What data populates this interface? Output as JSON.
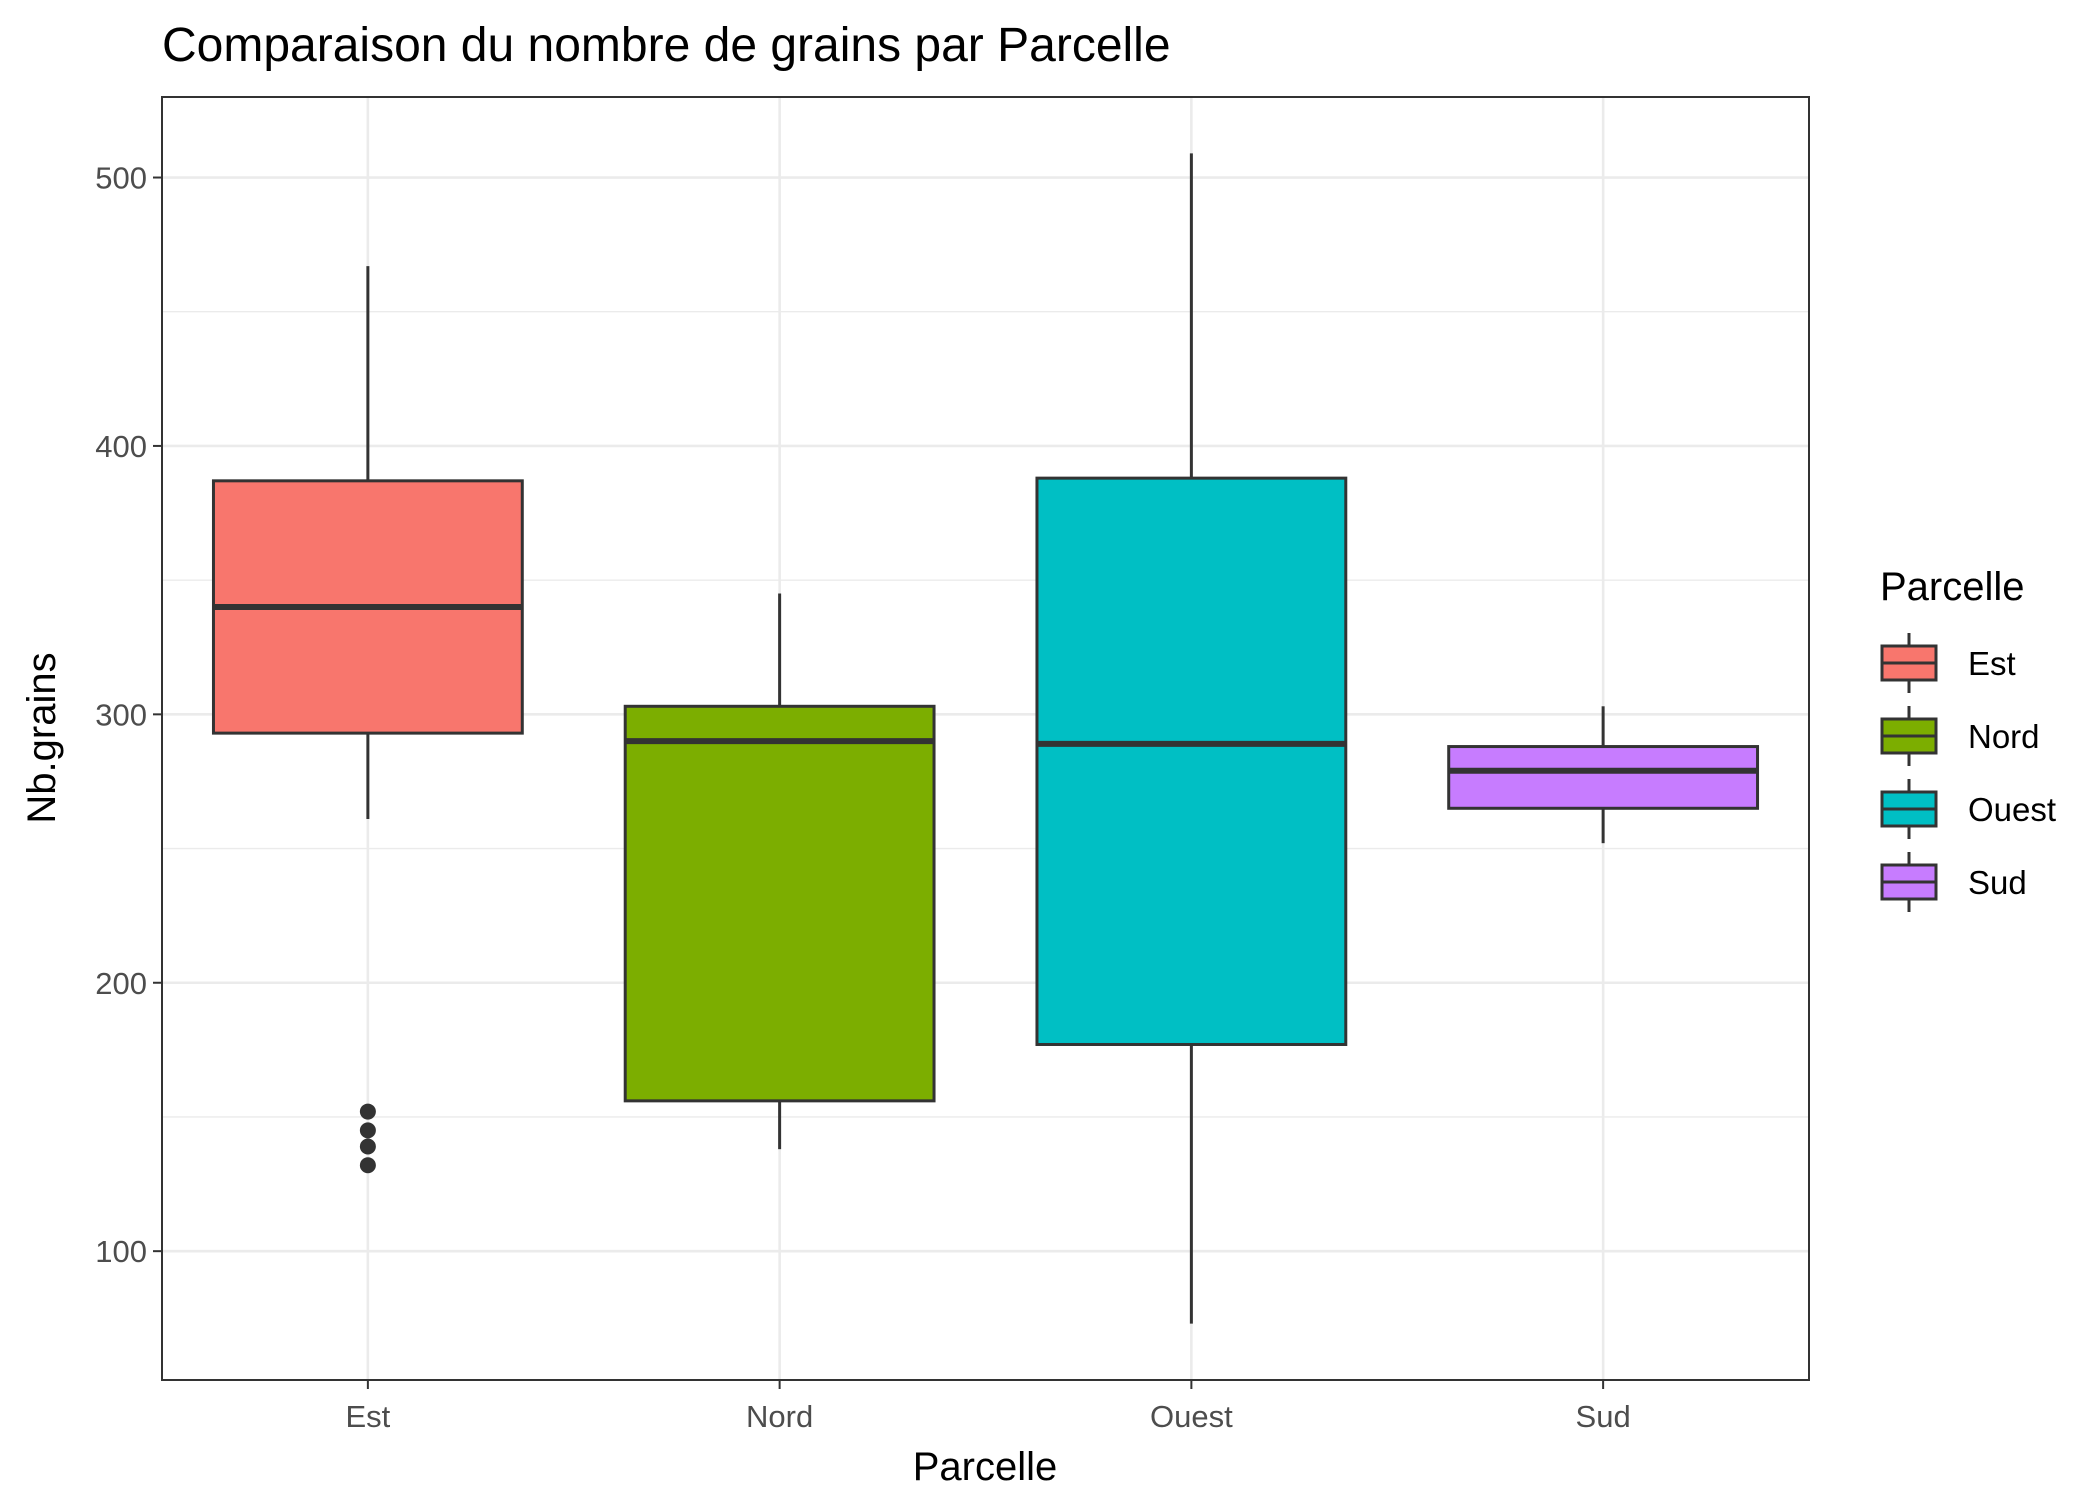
{
  "chart_data": {
    "type": "boxplot",
    "title": "Comparaison du nombre de grains par Parcelle",
    "xlabel": "Parcelle",
    "ylabel": "Nb.grains",
    "ylim": [
      52,
      530
    ],
    "yticks": [
      100,
      200,
      300,
      400,
      500
    ],
    "grid": true,
    "legend": {
      "title": "Parcelle",
      "placement": "right"
    },
    "categories": [
      "Est",
      "Nord",
      "Ouest",
      "Sud"
    ],
    "series": [
      {
        "name": "Est",
        "color": "#F8766D",
        "whisker_low": 261,
        "q1": 293,
        "median": 340,
        "q3": 387,
        "whisker_high": 467,
        "outliers": [
          152,
          145,
          139,
          132
        ]
      },
      {
        "name": "Nord",
        "color": "#7CAE00",
        "whisker_low": 138,
        "q1": 156,
        "median": 290,
        "q3": 303,
        "whisker_high": 345,
        "outliers": []
      },
      {
        "name": "Ouest",
        "color": "#00BFC4",
        "whisker_low": 73,
        "q1": 177,
        "median": 289,
        "q3": 388,
        "whisker_high": 509,
        "outliers": []
      },
      {
        "name": "Sud",
        "color": "#C77CFF",
        "whisker_low": 252,
        "q1": 265,
        "median": 279,
        "q3": 288,
        "whisker_high": 303,
        "outliers": []
      }
    ]
  }
}
